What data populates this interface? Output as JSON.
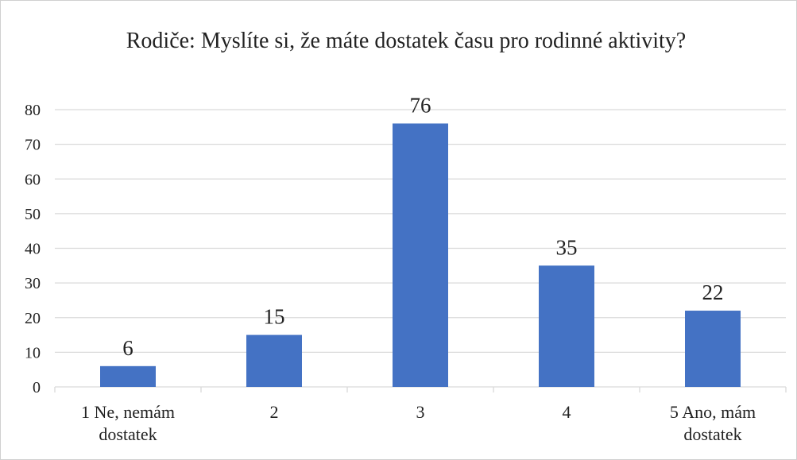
{
  "chart_data": {
    "type": "bar",
    "title": "Rodiče: Myslíte si, že máte dostatek času pro rodinné aktivity?",
    "categories": [
      "1 Ne, nemám dostatek",
      "2",
      "3",
      "4",
      "5 Ano, mám dostatek"
    ],
    "values": [
      6,
      15,
      76,
      35,
      22
    ],
    "color": "#4472c4",
    "ylim": [
      0,
      80
    ],
    "yticks": [
      0,
      10,
      20,
      30,
      40,
      50,
      60,
      70,
      80
    ],
    "grid": true
  }
}
